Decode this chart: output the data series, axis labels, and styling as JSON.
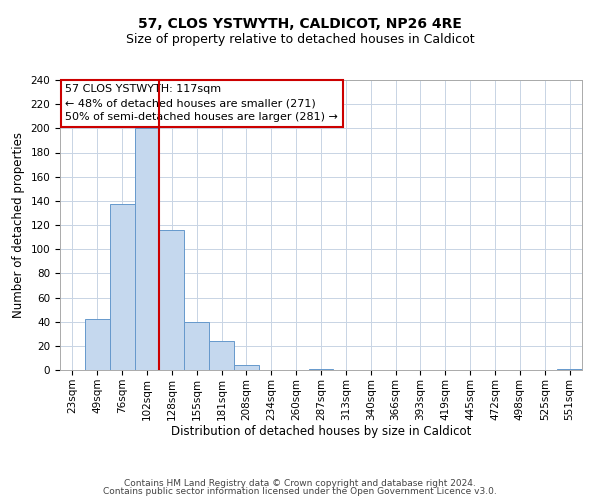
{
  "title": "57, CLOS YSTWYTH, CALDICOT, NP26 4RE",
  "subtitle": "Size of property relative to detached houses in Caldicot",
  "xlabel": "Distribution of detached houses by size in Caldicot",
  "ylabel": "Number of detached properties",
  "bin_labels": [
    "23sqm",
    "49sqm",
    "76sqm",
    "102sqm",
    "128sqm",
    "155sqm",
    "181sqm",
    "208sqm",
    "234sqm",
    "260sqm",
    "287sqm",
    "313sqm",
    "340sqm",
    "366sqm",
    "393sqm",
    "419sqm",
    "445sqm",
    "472sqm",
    "498sqm",
    "525sqm",
    "551sqm"
  ],
  "bar_values": [
    0,
    42,
    137,
    200,
    116,
    40,
    24,
    4,
    0,
    0,
    1,
    0,
    0,
    0,
    0,
    0,
    0,
    0,
    0,
    0,
    1
  ],
  "bar_color": "#c5d8ee",
  "bar_edge_color": "#6699cc",
  "ylim": [
    0,
    240
  ],
  "yticks": [
    0,
    20,
    40,
    60,
    80,
    100,
    120,
    140,
    160,
    180,
    200,
    220,
    240
  ],
  "annotation_title": "57 CLOS YSTWYTH: 117sqm",
  "annotation_line1": "← 48% of detached houses are smaller (271)",
  "annotation_line2": "50% of semi-detached houses are larger (281) →",
  "annotation_box_color": "#ffffff",
  "annotation_box_edge": "#cc0000",
  "vline_color": "#cc0000",
  "vline_x": 3.5,
  "footer1": "Contains HM Land Registry data © Crown copyright and database right 2024.",
  "footer2": "Contains public sector information licensed under the Open Government Licence v3.0.",
  "background_color": "#ffffff",
  "grid_color": "#c8d4e4",
  "title_fontsize": 10,
  "subtitle_fontsize": 9,
  "axis_label_fontsize": 8.5,
  "tick_fontsize": 7.5,
  "annotation_fontsize": 8,
  "footer_fontsize": 6.5
}
